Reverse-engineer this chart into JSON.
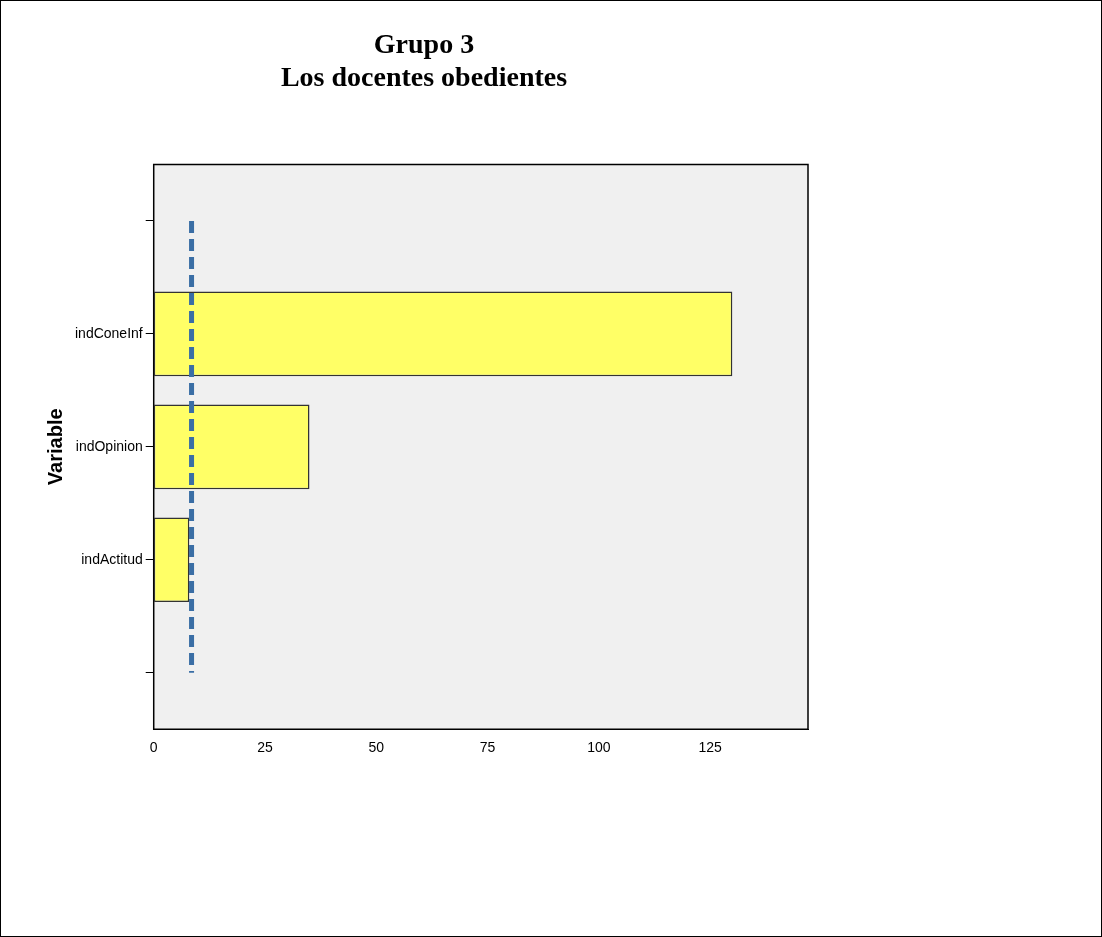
{
  "chart_data": {
    "type": "bar",
    "orientation": "horizontal",
    "title": "Grupo 3\nLos docentes obedientes",
    "ylabel": "Variable",
    "categories": [
      null,
      "indConeInf",
      "indOpinion",
      "indActitud",
      null
    ],
    "values": [
      null,
      130,
      35,
      8,
      null
    ],
    "color": "#ffff66",
    "xlim": [
      0,
      147
    ],
    "xticks": [
      0,
      25,
      50,
      75,
      100,
      125
    ],
    "grid": false,
    "legend": false,
    "ref_lines": [
      {
        "axis": "x",
        "value": 8.5,
        "color": "#3a6ea5",
        "line_style": "dashed"
      }
    ]
  }
}
